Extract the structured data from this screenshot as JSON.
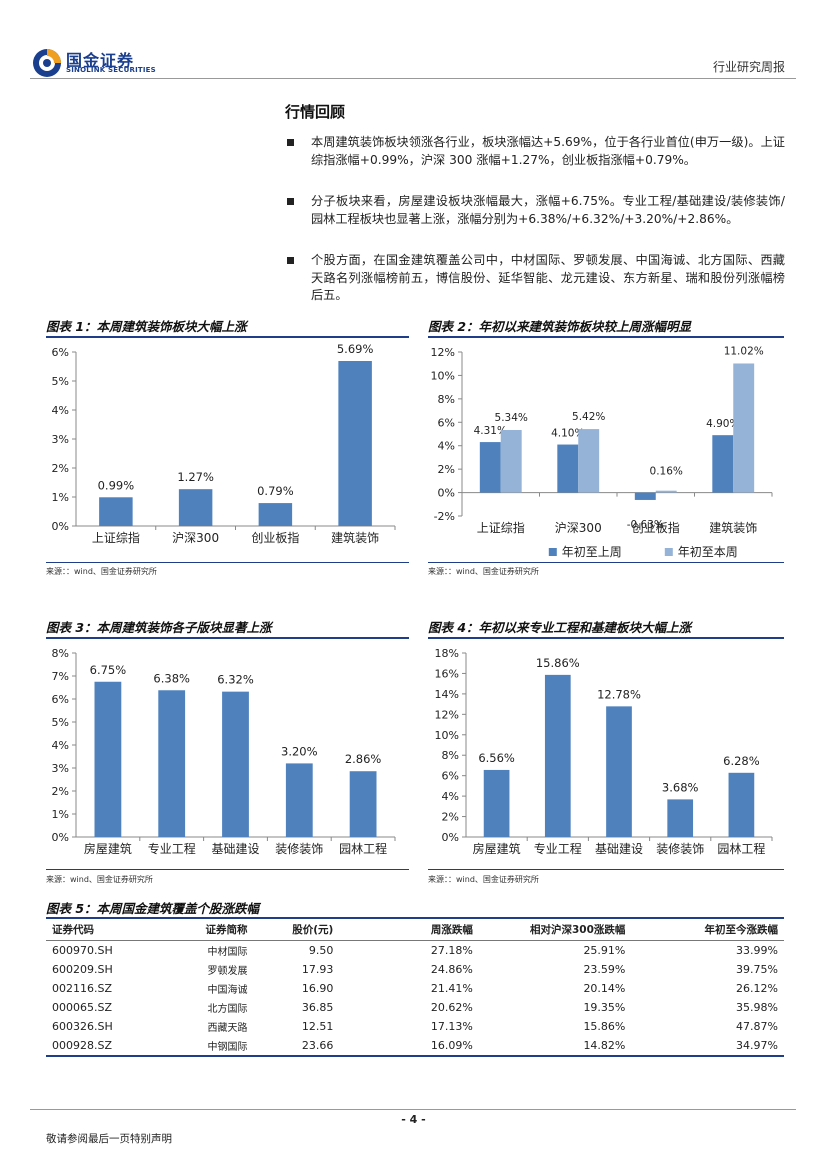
{
  "header": {
    "brand_cn": "国金证券",
    "brand_en": "SINOLINK SECURITIES",
    "tag": "行业研究周报",
    "logo_icon": "sinolink-logo-icon",
    "brand_color": "#1a3f8f"
  },
  "section_title": "行情回顾",
  "bullets": [
    "本周建筑装饰板块领涨各行业，板块涨幅达+5.69%，位于各行业首位(申万一级)。上证综指涨幅+0.99%，沪深 300 涨幅+1.27%，创业板指涨幅+0.79%。",
    "分子板块来看，房屋建设板块涨幅最大，涨幅+6.75%。专业工程/基础建设/装修装饰/园林工程板块也显著上涨，涨幅分别为+6.38%/+6.32%/+3.20%/+2.86%。",
    "个股方面，在国金建筑覆盖公司中，中材国际、罗顿发展、中国海诚、北方国际、西藏天路名列涨幅榜前五，博信股份、延华智能、龙元建设、东方新星、瑞和股份列涨幅榜后五。"
  ],
  "charts": [
    {
      "title": "图表 1：本周建筑装饰板块大幅上涨",
      "source": "来源：：wind、国金证券研究所"
    },
    {
      "title": "图表 2：年初以来建筑装饰板块较上周涨幅明显",
      "source": "来源：：wind、国金证券研究所"
    },
    {
      "title": "图表 3：本周建筑装饰各子版块显著上涨",
      "source": "来源：wind、国金证券研究所"
    },
    {
      "title": "图表 4：年初以来专业工程和基建板块大幅上涨",
      "source": "来源：：wind、国金证券研究所"
    }
  ],
  "chart_data": [
    {
      "type": "bar",
      "categories": [
        "上证综指",
        "沪深300",
        "创业板指",
        "建筑装饰"
      ],
      "values": [
        0.99,
        1.27,
        0.79,
        5.69
      ],
      "labels": [
        "0.99%",
        "1.27%",
        "0.79%",
        "5.69%"
      ],
      "yticks": [
        "0%",
        "1%",
        "2%",
        "3%",
        "4%",
        "5%",
        "6%"
      ],
      "ylim": [
        0,
        6
      ],
      "color": "#4f81bd"
    },
    {
      "type": "bar",
      "categories": [
        "上证综指",
        "沪深300",
        "创业板指",
        "建筑装饰"
      ],
      "series": [
        {
          "name": "年初至上周",
          "values": [
            4.31,
            4.1,
            -0.63,
            4.9
          ],
          "labels": [
            "4.31%",
            "4.10%",
            "-0.63%",
            "4.90%"
          ],
          "color": "#4f81bd"
        },
        {
          "name": "年初至本周",
          "values": [
            5.34,
            5.42,
            0.16,
            11.02
          ],
          "labels": [
            "5.34%",
            "5.42%",
            "0.16%",
            "11.02%"
          ],
          "color": "#95b3d7"
        }
      ],
      "yticks": [
        "-2%",
        "0%",
        "2%",
        "4%",
        "6%",
        "8%",
        "10%",
        "12%"
      ],
      "ylim": [
        -2,
        12
      ],
      "legend": "bottom"
    },
    {
      "type": "bar",
      "categories": [
        "房屋建筑",
        "专业工程",
        "基础建设",
        "装修装饰",
        "园林工程"
      ],
      "values": [
        6.75,
        6.38,
        6.32,
        3.2,
        2.86
      ],
      "labels": [
        "6.75%",
        "6.38%",
        "6.32%",
        "3.20%",
        "2.86%"
      ],
      "yticks": [
        "0%",
        "1%",
        "2%",
        "3%",
        "4%",
        "5%",
        "6%",
        "7%",
        "8%"
      ],
      "ylim": [
        0,
        8
      ],
      "color": "#4f81bd"
    },
    {
      "type": "bar",
      "categories": [
        "房屋建筑",
        "专业工程",
        "基础建设",
        "装修装饰",
        "园林工程"
      ],
      "values": [
        6.56,
        15.86,
        12.78,
        3.68,
        6.28
      ],
      "labels": [
        "6.56%",
        "15.86%",
        "12.78%",
        "3.68%",
        "6.28%"
      ],
      "yticks": [
        "0%",
        "2%",
        "4%",
        "6%",
        "8%",
        "10%",
        "12%",
        "14%",
        "16%",
        "18%"
      ],
      "ylim": [
        0,
        18
      ],
      "color": "#4f81bd"
    }
  ],
  "table": {
    "title": "图表 5：本周国金建筑覆盖个股涨跌幅",
    "headers": [
      "证券代码",
      "证券简称",
      "股价(元)",
      "周涨跌幅",
      "相对沪深300涨跌幅",
      "年初至今涨跌幅"
    ],
    "rows": [
      [
        "600970.SH",
        "中材国际",
        "9.50",
        "27.18%",
        "25.91%",
        "33.99%"
      ],
      [
        "600209.SH",
        "罗顿发展",
        "17.93",
        "24.86%",
        "23.59%",
        "39.75%"
      ],
      [
        "002116.SZ",
        "中国海诚",
        "16.90",
        "21.41%",
        "20.14%",
        "26.12%"
      ],
      [
        "000065.SZ",
        "北方国际",
        "36.85",
        "20.62%",
        "19.35%",
        "35.98%"
      ],
      [
        "600326.SH",
        "西藏天路",
        "12.51",
        "17.13%",
        "15.86%",
        "47.87%"
      ],
      [
        "000928.SZ",
        "中钢国际",
        "23.66",
        "16.09%",
        "14.82%",
        "34.97%"
      ]
    ]
  },
  "footer": {
    "page": "- 4 -",
    "disclaimer": "敬请参阅最后一页特别声明"
  }
}
